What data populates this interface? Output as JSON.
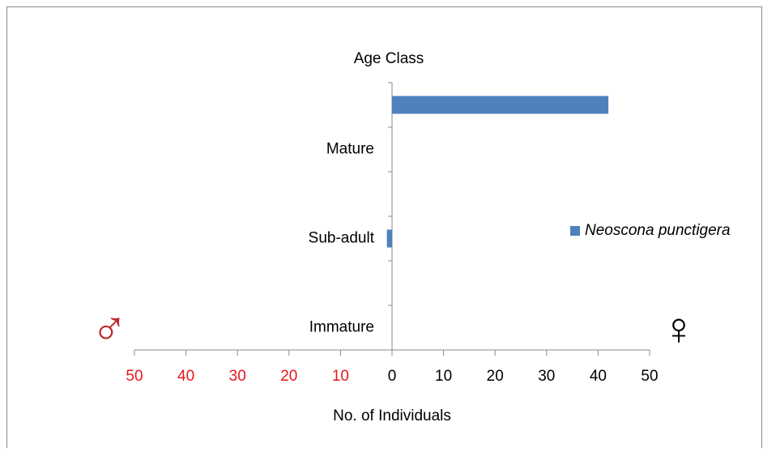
{
  "chart_data": {
    "type": "hbar",
    "title": "Age Class",
    "xlabel": "No. of Individuals",
    "categories": [
      "Immature",
      null,
      "Sub-adult",
      null,
      "Mature",
      null
    ],
    "series": [
      {
        "name": "Neoscona punctigera",
        "color": "#4f81bd",
        "values": [
          0,
          0,
          -1,
          0,
          0,
          42
        ]
      }
    ],
    "xlim": [
      -50,
      50
    ],
    "xticks": [
      {
        "value": -50,
        "label": "50"
      },
      {
        "value": -40,
        "label": "40"
      },
      {
        "value": -30,
        "label": "30"
      },
      {
        "value": -20,
        "label": "20"
      },
      {
        "value": -10,
        "label": "10"
      },
      0,
      10,
      20,
      30,
      40,
      50
    ],
    "negative_tick_color": "#e8171c",
    "left_symbol": "♂",
    "left_symbol_color": "#c0282d",
    "right_symbol": "♀",
    "legend": "right"
  }
}
